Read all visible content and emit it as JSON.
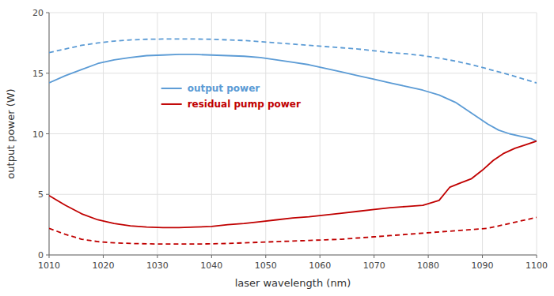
{
  "chart_data": {
    "type": "line",
    "xlabel": "laser wavelength (nm)",
    "ylabel": "output power (W)",
    "xlim": [
      1010,
      1100
    ],
    "ylim": [
      0,
      20
    ],
    "xticks": [
      1010,
      1020,
      1030,
      1040,
      1050,
      1060,
      1070,
      1080,
      1090,
      1100
    ],
    "yticks": [
      0,
      5,
      10,
      15,
      20
    ],
    "grid": true,
    "legend": "center left",
    "series": [
      {
        "color": "#5b9bd5",
        "line_style": "dashed",
        "x": [
          1010,
          1013,
          1016,
          1019,
          1022,
          1025,
          1028,
          1031,
          1034,
          1037,
          1040,
          1043,
          1046,
          1049,
          1052,
          1055,
          1058,
          1061,
          1064,
          1067,
          1070,
          1073,
          1076,
          1079,
          1082,
          1085,
          1088,
          1091,
          1094,
          1097,
          1100
        ],
        "values": [
          16.7,
          17.0,
          17.3,
          17.5,
          17.65,
          17.75,
          17.8,
          17.82,
          17.83,
          17.82,
          17.8,
          17.75,
          17.7,
          17.6,
          17.5,
          17.4,
          17.3,
          17.2,
          17.1,
          17.0,
          16.85,
          16.7,
          16.6,
          16.45,
          16.25,
          16.0,
          15.7,
          15.35,
          15.0,
          14.6,
          14.2
        ]
      },
      {
        "name": "output power",
        "color": "#5b9bd5",
        "line_style": "solid",
        "x": [
          1010,
          1013,
          1016,
          1019,
          1022,
          1025,
          1028,
          1031,
          1034,
          1037,
          1040,
          1043,
          1046,
          1049,
          1052,
          1055,
          1058,
          1061,
          1064,
          1067,
          1070,
          1073,
          1076,
          1079,
          1082,
          1085,
          1087,
          1089,
          1091,
          1093,
          1095,
          1097,
          1099,
          1100
        ],
        "values": [
          14.2,
          14.8,
          15.3,
          15.8,
          16.1,
          16.3,
          16.45,
          16.5,
          16.55,
          16.55,
          16.5,
          16.45,
          16.4,
          16.3,
          16.1,
          15.9,
          15.7,
          15.4,
          15.1,
          14.8,
          14.5,
          14.2,
          13.9,
          13.6,
          13.2,
          12.6,
          12.0,
          11.4,
          10.8,
          10.3,
          10.0,
          9.8,
          9.6,
          9.4
        ]
      },
      {
        "color": "#c00000",
        "line_style": "dashed",
        "x": [
          1010,
          1013,
          1016,
          1019,
          1022,
          1025,
          1028,
          1031,
          1034,
          1037,
          1040,
          1043,
          1046,
          1049,
          1052,
          1055,
          1058,
          1061,
          1064,
          1067,
          1070,
          1073,
          1076,
          1079,
          1082,
          1085,
          1088,
          1091,
          1094,
          1097,
          1100
        ],
        "values": [
          2.2,
          1.7,
          1.3,
          1.1,
          1.0,
          0.95,
          0.92,
          0.9,
          0.9,
          0.9,
          0.92,
          0.95,
          1.0,
          1.05,
          1.1,
          1.15,
          1.2,
          1.25,
          1.3,
          1.4,
          1.5,
          1.6,
          1.7,
          1.8,
          1.9,
          2.0,
          2.1,
          2.2,
          2.5,
          2.8,
          3.1
        ]
      },
      {
        "name": "residual pump power",
        "color": "#c00000",
        "line_style": "solid",
        "x": [
          1010,
          1013,
          1016,
          1019,
          1022,
          1025,
          1028,
          1031,
          1034,
          1037,
          1040,
          1043,
          1046,
          1049,
          1052,
          1055,
          1058,
          1061,
          1064,
          1067,
          1070,
          1073,
          1076,
          1079,
          1082,
          1084,
          1086,
          1088,
          1090,
          1092,
          1094,
          1096,
          1098,
          1100
        ],
        "values": [
          4.9,
          4.1,
          3.4,
          2.9,
          2.6,
          2.4,
          2.3,
          2.25,
          2.25,
          2.3,
          2.35,
          2.5,
          2.6,
          2.75,
          2.9,
          3.05,
          3.15,
          3.3,
          3.45,
          3.6,
          3.75,
          3.9,
          4.0,
          4.1,
          4.5,
          5.6,
          5.95,
          6.3,
          7.0,
          7.8,
          8.4,
          8.8,
          9.1,
          9.4
        ]
      }
    ]
  }
}
